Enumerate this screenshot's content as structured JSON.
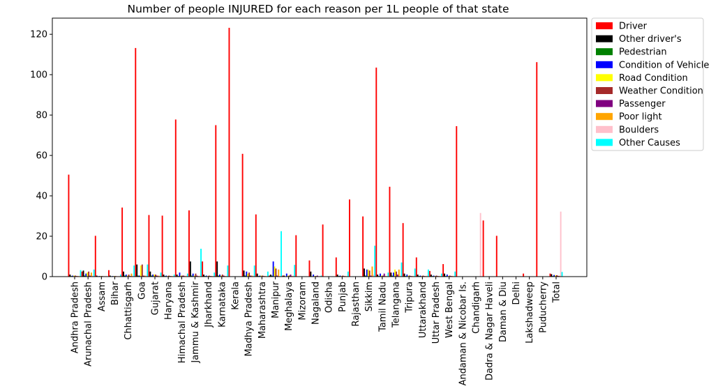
{
  "chart_data": {
    "type": "bar",
    "title": "Number of people INJURED for each reason per 1L people of that state",
    "xlabel": "",
    "ylabel": "",
    "ylim": [
      0,
      128
    ],
    "yticks": [
      0,
      20,
      40,
      60,
      80,
      100,
      120
    ],
    "grid": false,
    "legend_position": "outside-top-right",
    "categories": [
      "Andhra Pradesh",
      "Arunachal Pradesh",
      "Assam",
      "Bihar",
      "Chhattisgarh",
      "Goa",
      "Gujarat",
      "Haryana",
      "Himachal Pradesh",
      "Jammu & Kashmir",
      "Jharkhand",
      "Karnataka",
      "Kerala",
      "Madhya Pradesh",
      "Maharashtra",
      "Manipur",
      "Meghalaya",
      "Mizoram",
      "Nagaland",
      "Odisha",
      "Punjab",
      "Rajasthan",
      "Sikkim",
      "Tamil Nadu",
      "Telangana",
      "Tripura",
      "Uttarakhand",
      "Uttar Pradesh",
      "West Bengal",
      "Andaman & Nicobar Is.",
      "Chandigarh",
      "Dadra & Nagar Haveli",
      "Daman & Diu",
      "Delhi",
      "Lakshadweep",
      "Puducherry",
      "Total"
    ],
    "series": [
      {
        "name": "Driver",
        "color": "#ff0000",
        "values": [
          50.5,
          2.5,
          20.2,
          3.2,
          34.2,
          113.2,
          30.5,
          30.2,
          77.8,
          32.8,
          7.5,
          75,
          123.2,
          60.8,
          30.8,
          0.5,
          0.5,
          20.5,
          8,
          25.8,
          9.5,
          38.2,
          29.8,
          103.5,
          44.5,
          26.5,
          9.5,
          2.8,
          6.2,
          74.5,
          0,
          27.8,
          20.2,
          0,
          1.5,
          106.2,
          1.5
        ]
      },
      {
        "name": "Other driver's",
        "color": "#000000",
        "values": [
          1,
          3,
          0.5,
          0.5,
          2.5,
          6,
          2.5,
          1,
          1,
          7.5,
          1,
          7.5,
          0,
          3,
          1.5,
          1,
          0.5,
          0,
          2.5,
          0,
          1,
          0,
          4,
          1,
          2,
          1.5,
          1,
          1,
          1.5,
          0,
          0,
          0,
          0,
          0,
          0,
          0,
          1.2
        ]
      },
      {
        "name": "Pedestrian",
        "color": "#008000",
        "values": [
          0.3,
          0.5,
          0.2,
          0.2,
          0.5,
          0.5,
          0.5,
          0.3,
          0.3,
          0.5,
          0.3,
          0.5,
          0,
          0.5,
          0.3,
          0.5,
          0.2,
          0,
          0.2,
          0,
          0.3,
          0,
          0.5,
          0.3,
          0.5,
          0.3,
          0.3,
          0.3,
          0.3,
          0,
          0,
          0,
          0,
          0,
          0,
          0,
          0.3
        ]
      },
      {
        "name": "Condition of Vehicle",
        "color": "#0000ff",
        "values": [
          0.5,
          1.5,
          0.3,
          0.3,
          1,
          0.5,
          1,
          0.5,
          2,
          1.5,
          0.5,
          1,
          0,
          2.5,
          0.5,
          7.5,
          1.5,
          0,
          1,
          0,
          0.5,
          0,
          3.5,
          1.5,
          2,
          1,
          0.5,
          0.5,
          1,
          0,
          0,
          0,
          0,
          0,
          0,
          0,
          0.8
        ]
      },
      {
        "name": "Road Condition",
        "color": "#ffff00",
        "values": [
          0.5,
          2,
          0.3,
          0.3,
          0.5,
          5.5,
          1,
          0.3,
          0.5,
          0.5,
          0.3,
          0.5,
          0,
          1.5,
          0.5,
          5,
          0.5,
          0,
          0.3,
          0,
          0.3,
          0,
          3.5,
          0.5,
          3.5,
          0.5,
          0.3,
          0.3,
          0.3,
          0,
          0,
          0,
          0,
          0,
          0,
          0,
          0.6
        ]
      },
      {
        "name": "Weather Condition",
        "color": "#a52a2a",
        "values": [
          0.5,
          2.5,
          0.3,
          0.3,
          1,
          6,
          1,
          0.5,
          0.5,
          1.5,
          0.5,
          1,
          0,
          2,
          0.5,
          4,
          0.5,
          0,
          0.3,
          0,
          0.5,
          0,
          3,
          0.5,
          2.5,
          0.5,
          0.5,
          0.5,
          0.5,
          0,
          0,
          0,
          0,
          0,
          0,
          0,
          0.7
        ]
      },
      {
        "name": "Passenger",
        "color": "#800080",
        "values": [
          0.3,
          0.5,
          0.2,
          0.2,
          0.3,
          0.5,
          0.5,
          0.3,
          0.5,
          0.5,
          0.3,
          0.5,
          0,
          0.5,
          0.3,
          0.5,
          1,
          0,
          0.5,
          0,
          0.3,
          0,
          0.5,
          1.5,
          1,
          0.3,
          0.3,
          0.3,
          0.3,
          0,
          0,
          0,
          0,
          0,
          0,
          0,
          0.4
        ]
      },
      {
        "name": "Poor light",
        "color": "#ffa500",
        "values": [
          0.3,
          2,
          0.2,
          0.2,
          1.5,
          0.5,
          0.5,
          0.3,
          0.3,
          0.3,
          0.3,
          0.3,
          0,
          0.5,
          0.3,
          3.5,
          0.3,
          0,
          0.2,
          0,
          0.3,
          0,
          5,
          0.3,
          3.5,
          0.3,
          0.3,
          0.3,
          0.3,
          0,
          0,
          0,
          0,
          0,
          0,
          0,
          0.4
        ]
      },
      {
        "name": "Boulders",
        "color": "#ffc0cb",
        "values": [
          0.3,
          0.5,
          0.3,
          0.3,
          0.5,
          0.5,
          0.5,
          0.3,
          0.5,
          0.5,
          0.3,
          0.3,
          0,
          0.5,
          0.3,
          0.3,
          0.5,
          0,
          0.3,
          0,
          0.3,
          0,
          1,
          0.3,
          0.5,
          0.3,
          0.5,
          0.3,
          0.3,
          0,
          31.5,
          0,
          0,
          0,
          0,
          0,
          32.2
        ]
      },
      {
        "name": "Other Causes",
        "color": "#00ffff",
        "values": [
          3.2,
          3.5,
          0.2,
          1,
          5.5,
          6,
          2,
          1,
          1.5,
          13.8,
          2,
          5.5,
          0,
          5.5,
          2.5,
          22.5,
          5.8,
          0,
          0.5,
          0,
          2.5,
          0,
          15.3,
          2,
          7,
          4,
          3.5,
          1.5,
          2.5,
          0,
          0,
          0,
          0,
          0,
          0,
          0,
          2.3
        ]
      }
    ]
  }
}
